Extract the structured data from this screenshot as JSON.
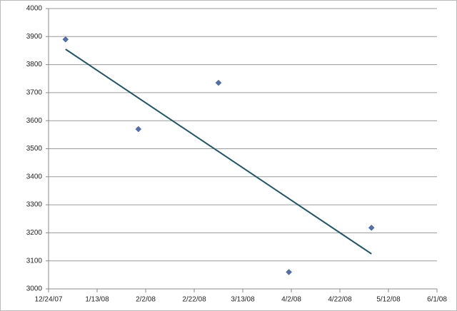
{
  "chart_data": {
    "type": "scatter",
    "x": [
      "2007-12-31",
      "2008-01-30",
      "2008-03-03",
      "2008-04-01",
      "2008-05-05"
    ],
    "series": [
      {
        "color": "#4f6fb0",
        "values": [
          3890,
          3570,
          3735,
          3060,
          3218
        ]
      }
    ],
    "trendline": {
      "x": [
        "2007-12-31",
        "2008-05-05"
      ],
      "values": [
        3855,
        3125
      ],
      "color": "#1e5668"
    },
    "xlim": [
      "2007-12-24",
      "2008-06-01"
    ],
    "xticks": [
      {
        "value": "2007-12-24",
        "label": "12/24/07"
      },
      {
        "value": "2008-01-13",
        "label": "1/13/08"
      },
      {
        "value": "2008-02-02",
        "label": "2/2/08"
      },
      {
        "value": "2008-02-22",
        "label": "2/22/08"
      },
      {
        "value": "2008-03-13",
        "label": "3/13/08"
      },
      {
        "value": "2008-04-02",
        "label": "4/2/08"
      },
      {
        "value": "2008-04-22",
        "label": "4/22/08"
      },
      {
        "value": "2008-05-12",
        "label": "5/12/08"
      },
      {
        "value": "2008-06-01",
        "label": "6/1/08"
      }
    ],
    "ylim": [
      3000,
      4000
    ],
    "yticks": [
      3000,
      3100,
      3200,
      3300,
      3400,
      3500,
      3600,
      3700,
      3800,
      3900,
      4000
    ],
    "grid": true
  }
}
